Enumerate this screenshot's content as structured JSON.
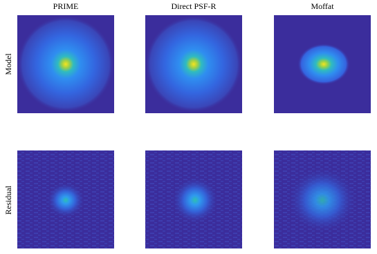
{
  "columns": [
    "PRIME",
    "Direct PSF-R",
    "Moffat"
  ],
  "rows": [
    "Model",
    "Residual"
  ]
}
